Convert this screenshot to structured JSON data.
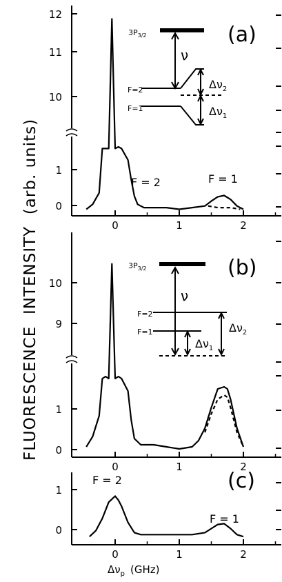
{
  "figure": {
    "y_axis_label": "FLUORESCENCE  INTENSITY  (arb. units)",
    "x_axis_label": "Δν",
    "x_axis_label_sub": "p",
    "x_axis_unit": "(GHz)"
  },
  "chart_data": [
    {
      "type": "line",
      "panel": "(a)",
      "xlim": [
        -0.6,
        2.5
      ],
      "ylim": [
        -0.2,
        12.1
      ],
      "broken_y_axis": true,
      "x_ticks": [
        "0",
        "1",
        "2"
      ],
      "y_ticks": [
        "0",
        "1",
        "10",
        "11",
        "12"
      ],
      "series": [
        {
          "style": "solid",
          "x": [
            -0.45,
            -0.35,
            -0.25,
            -0.2,
            -0.15,
            -0.1,
            -0.05,
            0.0,
            0.05,
            0.1,
            0.2,
            0.25,
            0.3,
            0.35,
            0.45,
            0.6,
            0.8,
            1.0,
            1.2,
            1.4,
            1.5,
            1.6,
            1.7,
            1.8,
            1.9,
            2.0
          ],
          "y": [
            0.0,
            0.15,
            0.5,
            1.85,
            1.85,
            1.85,
            11.8,
            1.85,
            1.9,
            1.85,
            1.5,
            0.9,
            0.4,
            0.15,
            0.05,
            0.05,
            0.05,
            0.0,
            0.05,
            0.1,
            0.25,
            0.38,
            0.42,
            0.3,
            0.1,
            0.0
          ]
        },
        {
          "style": "dashed",
          "x": [
            1.45,
            1.6,
            1.7,
            1.8,
            1.95
          ],
          "y": [
            0.1,
            0.05,
            0.05,
            0.05,
            0.0
          ]
        }
      ],
      "annotations": [
        "F = 2",
        "F = 1"
      ],
      "inset": {
        "levels": [
          "3P3/2",
          "F=2",
          "F=1"
        ],
        "labels": [
          "ν",
          "Δν2",
          "Δν1"
        ]
      }
    },
    {
      "type": "line",
      "panel": "(b)",
      "xlim": [
        -0.6,
        2.5
      ],
      "ylim": [
        -0.2,
        10.7
      ],
      "broken_y_axis": true,
      "x_ticks": [
        "0",
        "1",
        "2"
      ],
      "y_ticks": [
        "0",
        "1",
        "9",
        "10"
      ],
      "series": [
        {
          "style": "solid",
          "x": [
            -0.45,
            -0.35,
            -0.25,
            -0.2,
            -0.15,
            -0.1,
            -0.05,
            0.0,
            0.05,
            0.1,
            0.2,
            0.25,
            0.3,
            0.4,
            0.6,
            0.8,
            1.0,
            1.2,
            1.3,
            1.4,
            1.5,
            1.6,
            1.7,
            1.75,
            1.8,
            1.9,
            2.0
          ],
          "y": [
            0.05,
            0.3,
            0.8,
            1.7,
            1.75,
            1.7,
            10.6,
            1.7,
            1.75,
            1.7,
            1.4,
            0.7,
            0.25,
            0.1,
            0.1,
            0.05,
            0.0,
            0.05,
            0.2,
            0.5,
            1.0,
            1.45,
            1.5,
            1.45,
            1.2,
            0.5,
            0.05
          ]
        },
        {
          "style": "dashed",
          "x": [
            1.4,
            1.5,
            1.6,
            1.7,
            1.75,
            1.8,
            1.9,
            2.0
          ],
          "y": [
            0.4,
            0.85,
            1.2,
            1.3,
            1.25,
            1.0,
            0.4,
            0.05
          ]
        }
      ],
      "inset": {
        "levels": [
          "3P3/2",
          "F=2",
          "F=1"
        ],
        "labels": [
          "ν",
          "Δν1",
          "Δν2"
        ]
      }
    },
    {
      "type": "line",
      "panel": "(c)",
      "xlim": [
        -0.6,
        2.5
      ],
      "ylim": [
        -0.2,
        1.5
      ],
      "x_ticks": [
        "0",
        "1",
        "2"
      ],
      "y_ticks": [
        "0",
        "1"
      ],
      "series": [
        {
          "style": "solid",
          "x": [
            -0.4,
            -0.3,
            -0.2,
            -0.1,
            0.0,
            0.05,
            0.1,
            0.2,
            0.3,
            0.4,
            0.6,
            0.8,
            1.0,
            1.2,
            1.4,
            1.5,
            1.6,
            1.7,
            1.8,
            1.9,
            2.0
          ],
          "y": [
            0.0,
            0.15,
            0.45,
            0.85,
            1.0,
            0.9,
            0.75,
            0.35,
            0.1,
            0.05,
            0.05,
            0.05,
            0.05,
            0.05,
            0.1,
            0.2,
            0.3,
            0.32,
            0.2,
            0.05,
            0.0
          ]
        }
      ],
      "annotations": [
        "F = 2",
        "F = 1"
      ]
    }
  ]
}
